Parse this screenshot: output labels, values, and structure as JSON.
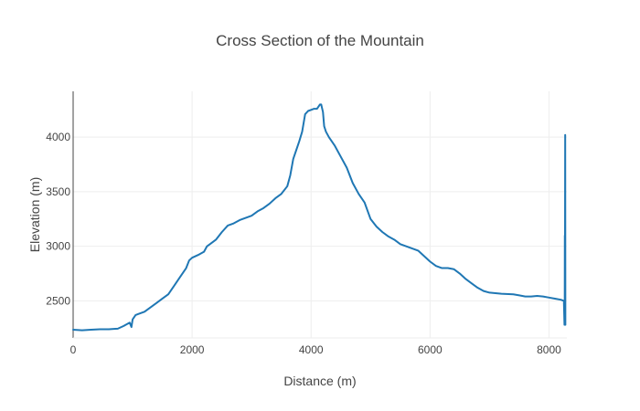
{
  "chart_data": {
    "type": "line",
    "title": "Cross Section of the Mountain",
    "xlabel": "Distance (m)",
    "ylabel": "Elevation (m)",
    "xlim": [
      0,
      8300
    ],
    "ylim": [
      2160,
      4420
    ],
    "xticks": [
      0,
      2000,
      4000,
      6000,
      8000
    ],
    "yticks": [
      2500,
      3000,
      3500,
      4000
    ],
    "grid": true,
    "legend": "none",
    "series": [
      {
        "color": "#1f77b4",
        "x": [
          0,
          150,
          300,
          450,
          600,
          750,
          850,
          950,
          980,
          1000,
          1050,
          1100,
          1200,
          1300,
          1400,
          1500,
          1600,
          1650,
          1700,
          1800,
          1900,
          1950,
          2000,
          2100,
          2200,
          2250,
          2300,
          2400,
          2500,
          2600,
          2700,
          2800,
          2900,
          3000,
          3100,
          3200,
          3300,
          3400,
          3500,
          3600,
          3650,
          3700,
          3750,
          3800,
          3850,
          3900,
          3950,
          4000,
          4050,
          4100,
          4150,
          4170,
          4200,
          4220,
          4250,
          4300,
          4400,
          4500,
          4550,
          4600,
          4700,
          4800,
          4900,
          5000,
          5100,
          5200,
          5300,
          5400,
          5500,
          5600,
          5700,
          5800,
          5900,
          6000,
          6100,
          6200,
          6300,
          6400,
          6500,
          6600,
          6700,
          6800,
          6900,
          7000,
          7200,
          7400,
          7500,
          7600,
          7700,
          7800,
          7900,
          8000,
          8100,
          8200,
          8250,
          8260,
          8262,
          8264,
          8266,
          8268,
          8270,
          8272,
          8274,
          8275
        ],
        "y": [
          2235,
          2230,
          2235,
          2240,
          2240,
          2245,
          2270,
          2300,
          2260,
          2330,
          2370,
          2380,
          2400,
          2440,
          2480,
          2520,
          2560,
          2600,
          2640,
          2720,
          2800,
          2870,
          2895,
          2920,
          2950,
          3000,
          3020,
          3060,
          3130,
          3190,
          3210,
          3240,
          3260,
          3280,
          3320,
          3350,
          3390,
          3440,
          3480,
          3550,
          3650,
          3800,
          3880,
          3960,
          4050,
          4210,
          4240,
          4250,
          4260,
          4260,
          4300,
          4300,
          4230,
          4100,
          4050,
          4000,
          3920,
          3820,
          3770,
          3720,
          3580,
          3480,
          3400,
          3250,
          3180,
          3130,
          3090,
          3060,
          3020,
          3000,
          2980,
          2960,
          2910,
          2860,
          2820,
          2800,
          2800,
          2790,
          2750,
          2700,
          2660,
          2620,
          2590,
          2575,
          2565,
          2560,
          2550,
          2540,
          2540,
          2545,
          2540,
          2530,
          2520,
          2510,
          2500,
          2280,
          2500,
          2350,
          3100,
          2700,
          3300,
          4020,
          2800,
          2280
        ]
      }
    ]
  }
}
